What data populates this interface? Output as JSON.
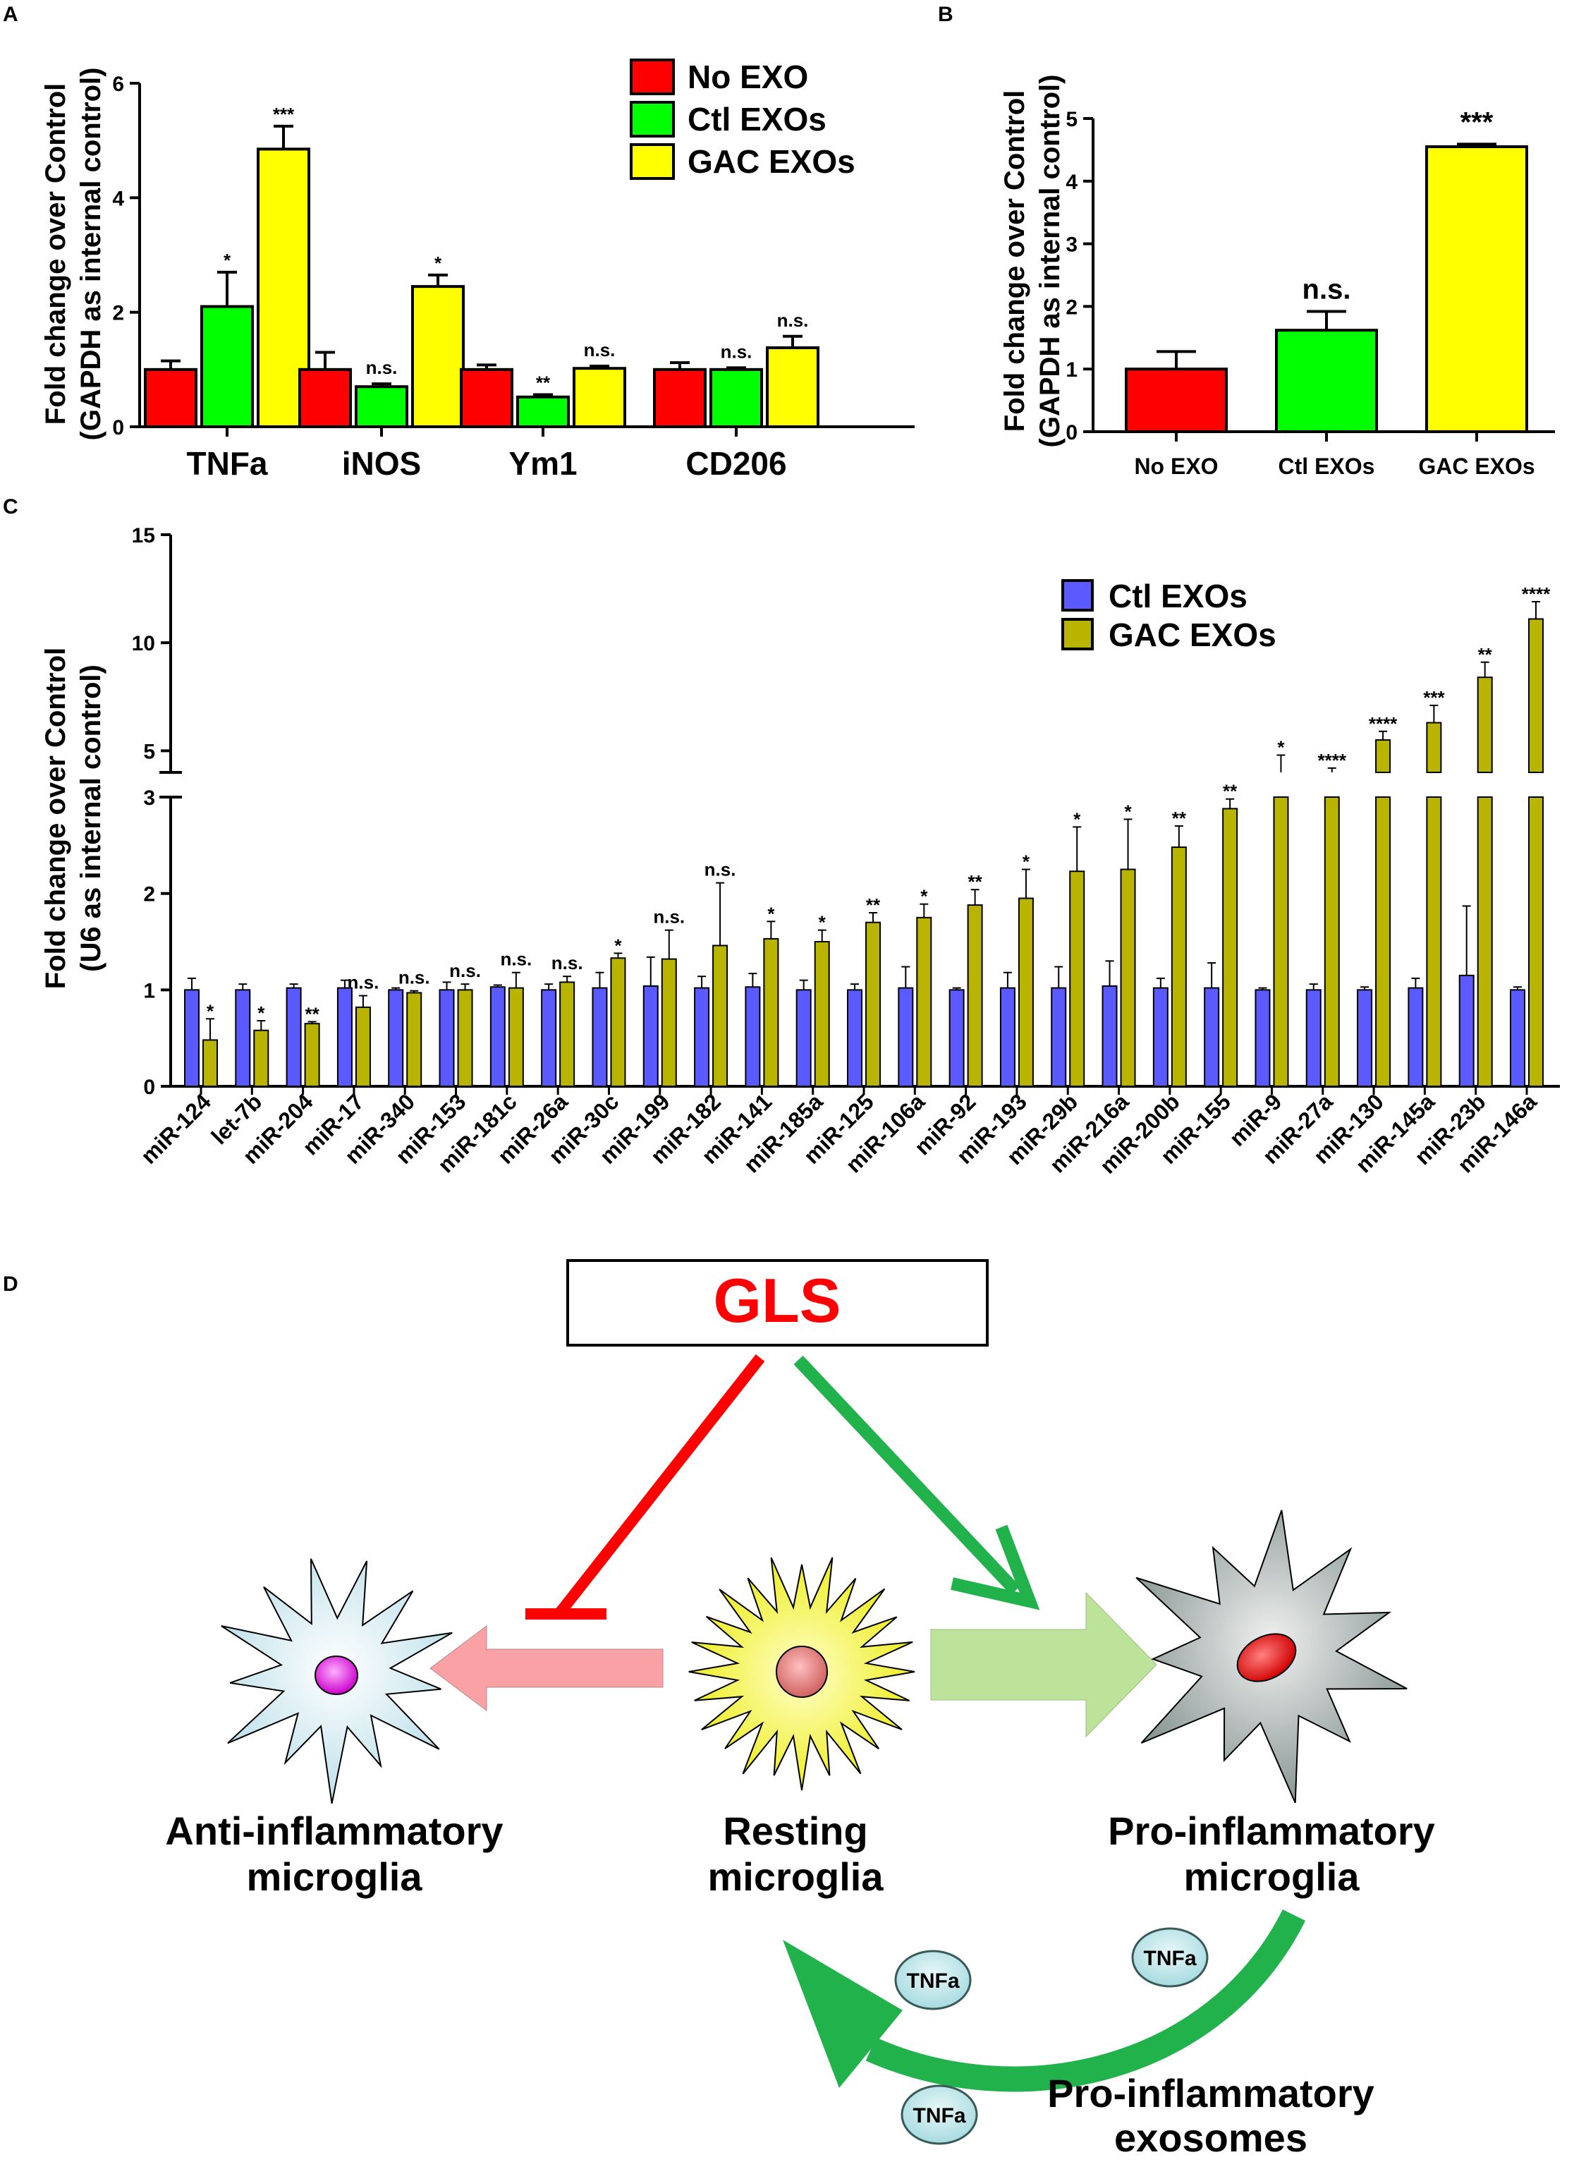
{
  "panels": {
    "A": {
      "label": "A"
    },
    "B": {
      "label": "B"
    },
    "C": {
      "label": "C"
    },
    "D": {
      "label": "D"
    }
  },
  "chart_data": [
    {
      "id": "A",
      "type": "bar",
      "ylabel": "Fold change over Control",
      "ylabel2": "(GAPDH as internal control)",
      "ylim": [
        0,
        6
      ],
      "yticks": [
        0,
        2,
        4,
        6
      ],
      "categories": [
        "TNFa",
        "iNOS",
        "Ym1",
        "CD206"
      ],
      "series": [
        {
          "name": "No EXO",
          "color": "#ff0000",
          "values": [
            1.0,
            1.0,
            1.0,
            1.0
          ],
          "errors": [
            0.15,
            0.3,
            0.08,
            0.12
          ],
          "sig": [
            "",
            "",
            "",
            ""
          ]
        },
        {
          "name": "Ctl EXOs",
          "color": "#00ff00",
          "values": [
            2.1,
            0.7,
            0.52,
            1.0
          ],
          "errors": [
            0.6,
            0.05,
            0.04,
            0.03
          ],
          "sig": [
            "*",
            "n.s.",
            "**",
            "n.s."
          ]
        },
        {
          "name": "GAC EXOs",
          "color": "#ffff00",
          "values": [
            4.85,
            2.45,
            1.02,
            1.38
          ],
          "errors": [
            0.4,
            0.2,
            0.04,
            0.2
          ],
          "sig": [
            "***",
            "*",
            "n.s.",
            "n.s."
          ]
        }
      ],
      "legend_position": "top-right"
    },
    {
      "id": "B",
      "type": "bar",
      "ylabel": "Fold change over Control",
      "ylabel2": "(GAPDH as internal control)",
      "ylim": [
        0,
        5
      ],
      "yticks": [
        0,
        1,
        2,
        3,
        4,
        5
      ],
      "categories": [
        "No EXO",
        "Ctl EXOs",
        "GAC EXOs"
      ],
      "values": [
        1.0,
        1.62,
        4.55
      ],
      "errors": [
        0.28,
        0.3,
        0.04
      ],
      "colors": [
        "#ff0000",
        "#00ff00",
        "#ffff00"
      ],
      "sig": [
        "",
        "n.s.",
        "***"
      ]
    },
    {
      "id": "C",
      "type": "bar",
      "ylabel": "Fold change over Control",
      "ylabel2": "(U6 as internal control)",
      "ylim_lower": [
        0,
        3
      ],
      "ylim_upper": [
        4,
        15
      ],
      "yticks_lower": [
        0,
        1,
        2,
        3
      ],
      "yticks_upper": [
        5,
        10,
        15
      ],
      "categories": [
        "miR-124",
        "let-7b",
        "miR-204",
        "miR-17",
        "miR-340",
        "miR-153",
        "miR-181c",
        "miR-26a",
        "miR-30c",
        "miR-199",
        "miR-182",
        "miR-141",
        "miR-185a",
        "miR-125",
        "miR-106a",
        "miR-92",
        "miR-193",
        "miR-29b",
        "miR-216a",
        "miR-200b",
        "miR-155",
        "miR-9",
        "miR-27a",
        "miR-130",
        "miR-145a",
        "miR-23b",
        "miR-146a"
      ],
      "series": [
        {
          "name": "Ctl EXOs",
          "color": "#5a5aff",
          "values": [
            1.0,
            1.0,
            1.02,
            1.02,
            1.0,
            1.0,
            1.03,
            1.0,
            1.02,
            1.04,
            1.02,
            1.03,
            1.0,
            1.0,
            1.02,
            1.0,
            1.02,
            1.02,
            1.04,
            1.02,
            1.02,
            1.0,
            1.0,
            1.0,
            1.02,
            1.15,
            1.0
          ],
          "errors": [
            0.12,
            0.06,
            0.04,
            0.08,
            0.02,
            0.08,
            0.02,
            0.06,
            0.16,
            0.3,
            0.12,
            0.14,
            0.1,
            0.06,
            0.22,
            0.02,
            0.16,
            0.22,
            0.26,
            0.1,
            0.26,
            0.02,
            0.06,
            0.03,
            0.1,
            0.72,
            0.03
          ]
        },
        {
          "name": "GAC EXOs",
          "color": "#b9b400",
          "values": [
            0.48,
            0.58,
            0.65,
            0.82,
            0.97,
            1.0,
            1.02,
            1.08,
            1.33,
            1.32,
            1.46,
            1.53,
            1.5,
            1.7,
            1.75,
            1.88,
            1.95,
            2.23,
            2.25,
            2.48,
            2.88,
            3.9,
            3.75,
            5.5,
            6.3,
            8.4,
            11.1
          ],
          "errors": [
            0.22,
            0.1,
            0.02,
            0.12,
            0.02,
            0.06,
            0.16,
            0.06,
            0.05,
            0.3,
            0.65,
            0.18,
            0.12,
            0.1,
            0.14,
            0.16,
            0.3,
            0.46,
            0.52,
            0.22,
            0.1,
            0.8,
            0.2,
            0.4,
            0.8,
            0.7,
            0.8
          ],
          "sig": [
            "*",
            "*",
            "**",
            "n.s.",
            "n.s.",
            "n.s.",
            "n.s.",
            "n.s.",
            "*",
            "n.s.",
            "n.s.",
            "*",
            "*",
            "**",
            "*",
            "**",
            "*",
            "*",
            "*",
            "**",
            "**",
            "*",
            "****",
            "****",
            "***",
            "**",
            "****"
          ]
        }
      ],
      "legend_position": "top-right"
    }
  ],
  "diagram": {
    "gls": "GLS",
    "anti": [
      "Anti-inflammatory",
      "microglia"
    ],
    "resting": [
      "Resting",
      "microglia"
    ],
    "pro": [
      "Pro-inflammatory",
      "microglia"
    ],
    "exosomes": [
      "Pro-inflammatory",
      "exosomes"
    ],
    "tnf": "TNFa",
    "colors": {
      "inhibit": "#ff0000",
      "activate": "#22b24c",
      "anti_arrow": "#f9a1a5",
      "pro_arrow": "#bde39b",
      "gls_text": "#ff0000"
    }
  }
}
